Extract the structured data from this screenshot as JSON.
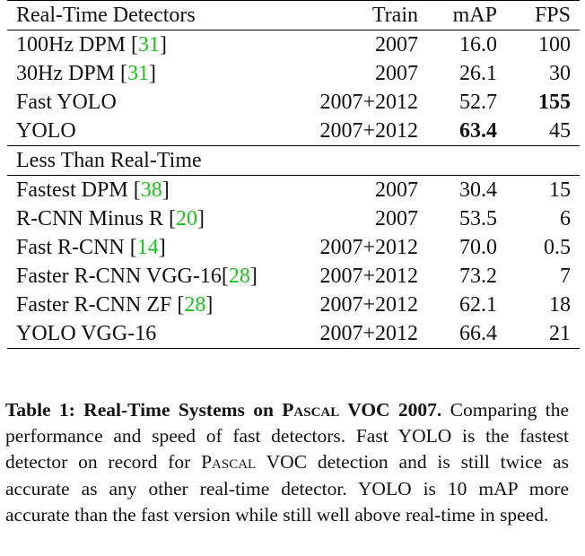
{
  "table": {
    "headers": {
      "name": "Real-Time Detectors",
      "train": "Train",
      "map": "mAP",
      "fps": "FPS"
    },
    "realtime_rows": [
      {
        "name": "100Hz DPM ",
        "cite": "31",
        "train": "2007",
        "map": "16.0",
        "fps": "100",
        "map_bold": false,
        "fps_bold": false
      },
      {
        "name": "30Hz DPM ",
        "cite": "31",
        "train": "2007",
        "map": "26.1",
        "fps": "30",
        "map_bold": false,
        "fps_bold": false
      },
      {
        "name": "Fast YOLO",
        "cite": "",
        "train": "2007+2012",
        "map": "52.7",
        "fps": "155",
        "map_bold": false,
        "fps_bold": true
      },
      {
        "name": "YOLO",
        "cite": "",
        "train": "2007+2012",
        "map": "63.4",
        "fps": "45",
        "map_bold": true,
        "fps_bold": false
      }
    ],
    "section2_title": "Less Than Real-Time",
    "slow_rows": [
      {
        "name": "Fastest DPM ",
        "cite": "38",
        "train": "2007",
        "map": "30.4",
        "fps": "15"
      },
      {
        "name": "R-CNN Minus R ",
        "cite": "20",
        "train": "2007",
        "map": "53.5",
        "fps": "6"
      },
      {
        "name": "Fast R-CNN ",
        "cite": "14",
        "train": "2007+2012",
        "map": "70.0",
        "fps": "0.5"
      },
      {
        "name": "Faster R-CNN VGG-16",
        "cite": "28",
        "train": "2007+2012",
        "map": "73.2",
        "fps": "7"
      },
      {
        "name": "Faster R-CNN ZF ",
        "cite": "28",
        "train": "2007+2012",
        "map": "62.1",
        "fps": "18"
      },
      {
        "name": "YOLO VGG-16",
        "cite": "",
        "train": "2007+2012",
        "map": "66.4",
        "fps": "21"
      }
    ]
  },
  "caption": {
    "label": "Table 1:",
    "title_a": " Real-Time Systems on ",
    "title_sc": "Pascal",
    "title_b": " VOC 2007.",
    "text_a": " Comparing the performance and speed of fast detectors. Fast YOLO is the fastest detector on record for ",
    "text_sc": "Pascal",
    "text_b": " VOC detection and is still twice as accurate as any other real-time detector. YOLO is 10 mAP more accurate than the fast version while still well above real-time in speed."
  },
  "colors": {
    "citation": "#18c418",
    "text": "#111111",
    "rule": "#000000"
  }
}
